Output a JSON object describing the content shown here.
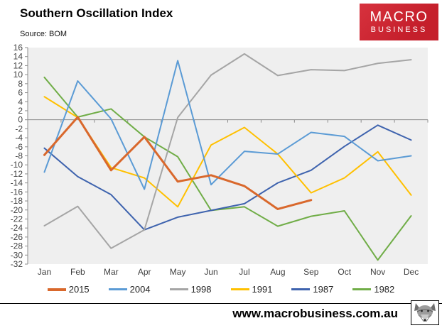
{
  "header": {
    "title": "Southern Oscillation Index",
    "source": "Source: BOM",
    "logo": {
      "line1": "MACRO",
      "line2": "BUSINESS",
      "bg_color": "#c8222e"
    }
  },
  "footer": {
    "url": "www.macrobusiness.com.au",
    "logo_icon": "wolf-etching"
  },
  "chart_data": {
    "type": "line",
    "title": "Southern Oscillation Index",
    "categories": [
      "Jan",
      "Feb",
      "Mar",
      "Apr",
      "May",
      "Jun",
      "Jul",
      "Aug",
      "Sep",
      "Oct",
      "Nov",
      "Dec"
    ],
    "series": [
      {
        "name": "2015",
        "color": "#d9682c",
        "stroke_width": 3,
        "values": [
          -7.8,
          0.6,
          -11.2,
          -3.8,
          -13.7,
          -12.3,
          -14.7,
          -19.8,
          -17.8,
          null,
          null,
          null
        ]
      },
      {
        "name": "2004",
        "color": "#5b9bd5",
        "stroke_width": 2,
        "values": [
          -11.6,
          8.6,
          0.2,
          -15.4,
          13.1,
          -14.4,
          -7.0,
          -7.6,
          -2.8,
          -3.7,
          -9.1,
          -8.0
        ]
      },
      {
        "name": "1998",
        "color": "#a5a5a5",
        "stroke_width": 2,
        "values": [
          -23.5,
          -19.2,
          -28.5,
          -24.4,
          0.5,
          9.9,
          14.6,
          9.8,
          11.1,
          10.9,
          12.5,
          13.3
        ]
      },
      {
        "name": "1991",
        "color": "#ffc000",
        "stroke_width": 2,
        "values": [
          5.1,
          0.5,
          -10.6,
          -12.9,
          -19.3,
          -5.6,
          -1.7,
          -7.6,
          -16.2,
          -12.9,
          -7.1,
          -16.7
        ]
      },
      {
        "name": "1987",
        "color": "#3e63ae",
        "stroke_width": 2,
        "values": [
          -6.3,
          -12.6,
          -16.6,
          -24.4,
          -21.6,
          -20.1,
          -18.6,
          -14.0,
          -11.2,
          -5.9,
          -1.2,
          -4.5
        ]
      },
      {
        "name": "1982",
        "color": "#70ad47",
        "stroke_width": 2,
        "values": [
          9.4,
          0.6,
          2.4,
          -3.8,
          -8.2,
          -20.1,
          -19.3,
          -23.6,
          -21.4,
          -20.2,
          -31.1,
          -21.3
        ]
      }
    ],
    "ylim": [
      -32,
      16
    ],
    "ytick_step": 2,
    "xlabel": "",
    "ylabel": "",
    "grid": false,
    "legend_position": "bottom",
    "plot_bg": "#efefef",
    "axis_color": "#8c8c8c",
    "tick_label_color": "#3f3f3f"
  }
}
